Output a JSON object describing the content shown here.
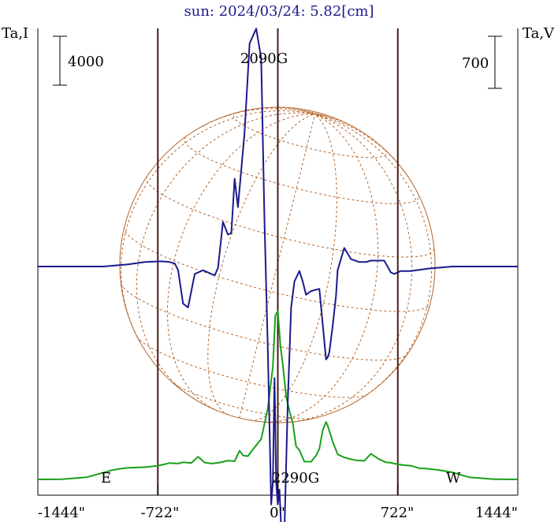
{
  "chart_data": {
    "type": "line",
    "title": "sun: 2024/03/24: 5.82[cm]",
    "left_axis_label": "Ta,I",
    "right_axis_label": "Ta,V",
    "left_scale_bar_value": "4000",
    "right_scale_bar_value": "700",
    "annotations": {
      "top_field": "2090G",
      "bottom_field": "2290G",
      "east": "E",
      "west": "W"
    },
    "x_ticks": [
      {
        "value": -1444,
        "label": "-1444\""
      },
      {
        "value": -722,
        "label": "-722\""
      },
      {
        "value": 0,
        "label": "0\""
      },
      {
        "value": 722,
        "label": "722\""
      },
      {
        "value": 1444,
        "label": "1444\""
      }
    ],
    "xlim": [
      -1444,
      1444
    ],
    "limb_markers_arcsec": [
      -722,
      0,
      722
    ],
    "colors": {
      "intensity": "#1a1a8c",
      "polarization": "#1aa01a",
      "grid": "#b5652a",
      "frame": "#000000",
      "vertical_lines": "#4a1c1c"
    },
    "series": [
      {
        "name": "Ta,V",
        "color": "#1a1a8c",
        "x": [
          -1444,
          -1050,
          -900,
          -800,
          -700,
          -650,
          -620,
          -600,
          -570,
          -540,
          -500,
          -450,
          -420,
          -380,
          -360,
          -330,
          -300,
          -280,
          -260,
          -240,
          -200,
          -170,
          -130,
          -100,
          -80,
          -60,
          -40,
          -30,
          -20,
          -10,
          0,
          10,
          20,
          40,
          60,
          80,
          100,
          130,
          150,
          170,
          200,
          250,
          290,
          300,
          310,
          330,
          350,
          360,
          400,
          440,
          490,
          530,
          560,
          640,
          680,
          700,
          740,
          800,
          900,
          1050,
          1444
        ],
        "y": [
          0,
          0,
          30,
          60,
          70,
          60,
          40,
          -50,
          -500,
          -550,
          -100,
          -50,
          -80,
          -120,
          -20,
          600,
          430,
          450,
          1180,
          800,
          1800,
          3000,
          3200,
          2800,
          600,
          -1100,
          -3200,
          -2900,
          -1500,
          -2900,
          -3200,
          -3000,
          -3500,
          -3550,
          -1800,
          -550,
          -200,
          -60,
          -200,
          -380,
          -330,
          -300,
          -1250,
          -1220,
          -1150,
          -800,
          -400,
          -50,
          250,
          100,
          60,
          60,
          80,
          80,
          -80,
          -100,
          -60,
          -60,
          -30,
          0,
          0
        ]
      },
      {
        "name": "Ta,I",
        "color": "#1aa01a",
        "x": [
          -1444,
          -1300,
          -1150,
          -1050,
          -1000,
          -950,
          -900,
          -800,
          -720,
          -650,
          -600,
          -570,
          -520,
          -480,
          -440,
          -400,
          -350,
          -300,
          -260,
          -230,
          -210,
          -180,
          -150,
          -100,
          -60,
          -30,
          -15,
          0,
          15,
          30,
          50,
          70,
          90,
          110,
          130,
          160,
          200,
          230,
          250,
          270,
          290,
          300,
          330,
          360,
          400,
          440,
          470,
          520,
          560,
          610,
          650,
          680,
          700,
          750,
          800,
          850,
          900,
          950,
          1000,
          1050,
          1150,
          1300,
          1444
        ],
        "y": [
          0,
          20,
          180,
          550,
          750,
          870,
          950,
          1000,
          1120,
          1340,
          1300,
          1400,
          1350,
          1860,
          1380,
          1300,
          1380,
          1540,
          1490,
          2350,
          1960,
          1900,
          2450,
          3300,
          5800,
          9200,
          13400,
          13800,
          11000,
          9400,
          6800,
          5600,
          4600,
          2700,
          2400,
          1450,
          1450,
          1950,
          2500,
          4000,
          4700,
          4400,
          3100,
          2050,
          1800,
          1650,
          1570,
          1520,
          2100,
          1650,
          1400,
          1360,
          1300,
          1180,
          1120,
          920,
          880,
          800,
          700,
          580,
          180,
          20,
          0
        ]
      }
    ]
  }
}
